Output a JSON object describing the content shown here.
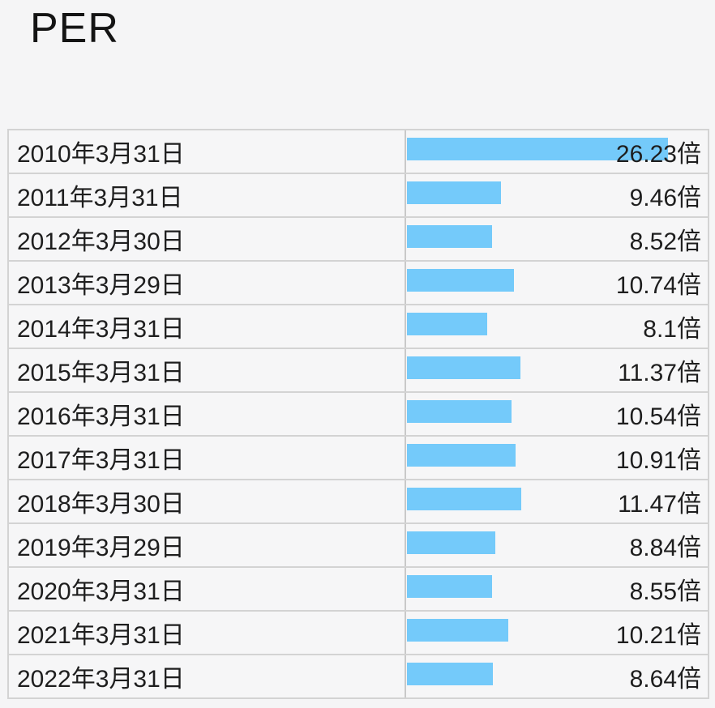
{
  "page": {
    "title": "PER",
    "background_color": "#f5f5f6",
    "text_color": "#1e1e1e",
    "border_color": "#d3d3d3",
    "divider_color": "#c9c9c9"
  },
  "chart_data": {
    "type": "bar",
    "orientation": "horizontal",
    "title": "PER",
    "categories": [
      "2010年3月31日",
      "2011年3月31日",
      "2012年3月30日",
      "2013年3月29日",
      "2014年3月31日",
      "2015年3月31日",
      "2016年3月31日",
      "2017年3月31日",
      "2018年3月30日",
      "2019年3月29日",
      "2020年3月31日",
      "2021年3月31日",
      "2022年3月31日"
    ],
    "values": [
      26.23,
      9.46,
      8.52,
      10.74,
      8.1,
      11.37,
      10.54,
      10.91,
      11.47,
      8.84,
      8.55,
      10.21,
      8.64
    ],
    "value_labels": [
      "26.23倍",
      "9.46倍",
      "8.52倍",
      "10.74倍",
      "8.1倍",
      "11.37倍",
      "10.54倍",
      "10.91倍",
      "11.47倍",
      "8.84倍",
      "8.55倍",
      "10.21倍",
      "8.64倍"
    ],
    "unit_suffix": "倍",
    "xlim": [
      0,
      26.23
    ],
    "bar_color": "#74cafa",
    "grid": false,
    "legend": false,
    "value_label_position": "right-aligned, overlaid on bar"
  }
}
